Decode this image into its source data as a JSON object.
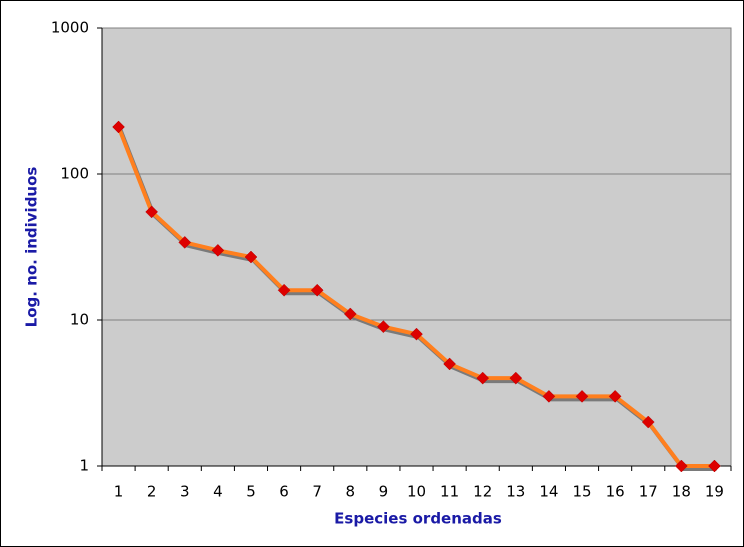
{
  "chart_data": {
    "type": "line",
    "y_label": "Log. no. individuos",
    "x_label": "Especies ordenadas",
    "categories": [
      "1",
      "2",
      "3",
      "4",
      "5",
      "6",
      "7",
      "8",
      "9",
      "10",
      "11",
      "12",
      "13",
      "14",
      "15",
      "16",
      "17",
      "18",
      "19"
    ],
    "values": [
      210,
      55,
      34,
      30,
      27,
      16,
      16,
      11,
      9,
      8,
      5,
      4,
      4,
      3,
      3,
      3,
      2,
      1,
      1
    ],
    "color": "#ff7f1e",
    "marker_color": "#dd0000",
    "ylim": [
      1,
      1000
    ],
    "yticks": [
      1,
      10,
      100,
      1000
    ],
    "yscale": "log",
    "grid": true
  }
}
